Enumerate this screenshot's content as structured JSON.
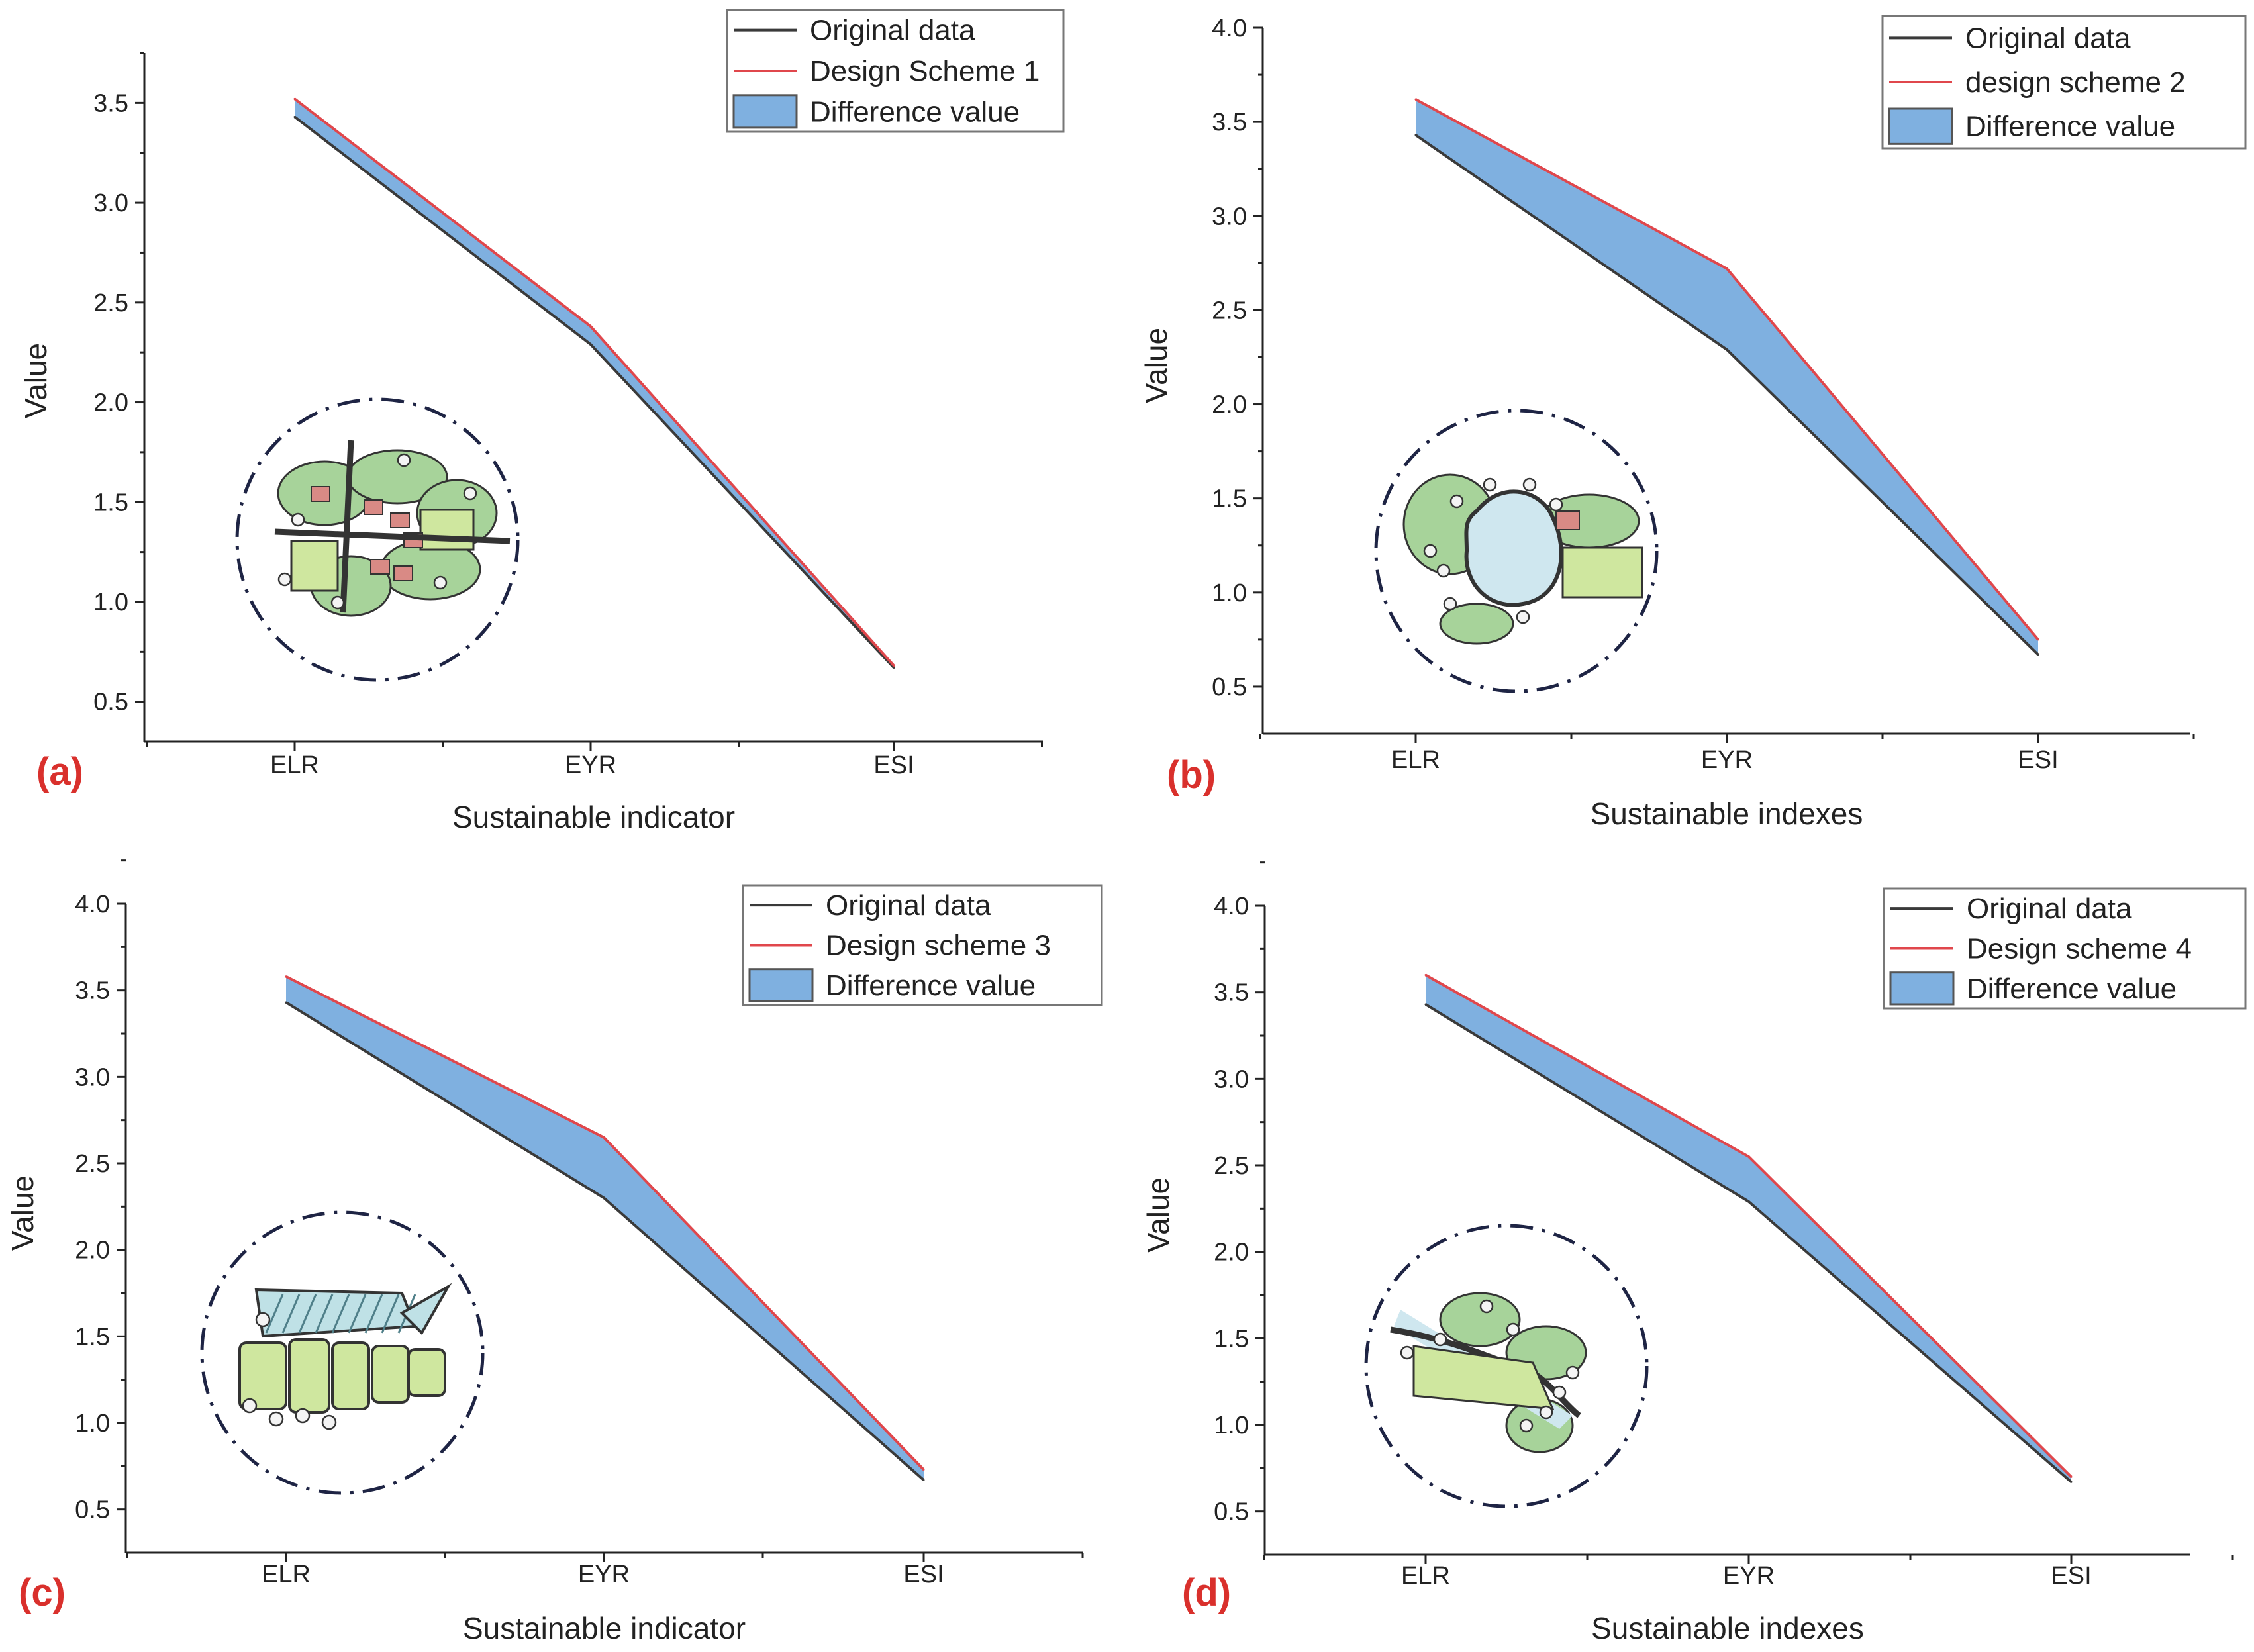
{
  "colors": {
    "original": "#3a3a3a",
    "scheme": "#e0474c",
    "fill": "#7fb0e0",
    "panel_label": "#d9302c",
    "emblem_ring": "#1e2444"
  },
  "chart_data": [
    {
      "type": "area",
      "panel_label": "(a)",
      "categories": [
        "ELR",
        "EYR",
        "ESI"
      ],
      "xlabel": "Sustainable indicator",
      "ylabel": "Value",
      "ylim": [
        0.3,
        3.75
      ],
      "yticks": [
        0.5,
        1.0,
        1.5,
        2.0,
        2.5,
        3.0,
        3.5
      ],
      "ytick_labels": [
        "0.5",
        "1.0",
        "1.5",
        "2.0",
        "2.5",
        "3.0",
        "3.5"
      ],
      "series": [
        {
          "name": "Original data",
          "values": [
            3.43,
            2.29,
            0.67
          ]
        },
        {
          "name": "Design Scheme 1",
          "values": [
            3.52,
            2.38,
            0.68
          ]
        }
      ],
      "fill_name": "Difference value",
      "emblem": "village-crossroads-plan"
    },
    {
      "type": "area",
      "panel_label": "(b)",
      "categories": [
        "ELR",
        "EYR",
        "ESI"
      ],
      "xlabel": "Sustainable indexes",
      "ylabel": "Value",
      "ylim": [
        0.25,
        4.0
      ],
      "yticks": [
        0.5,
        1.0,
        1.5,
        2.0,
        2.5,
        3.0,
        3.5,
        4.0
      ],
      "ytick_labels": [
        "0.5",
        "1.0",
        "1.5",
        "2.0",
        "2.5",
        "3.0",
        "3.5",
        "4.0"
      ],
      "series": [
        {
          "name": "Original data",
          "values": [
            3.43,
            2.29,
            0.67
          ]
        },
        {
          "name": "design scheme 2",
          "values": [
            3.62,
            2.72,
            0.75
          ]
        }
      ],
      "fill_name": "Difference value",
      "emblem": "pond-plan"
    },
    {
      "type": "area",
      "panel_label": "(c)",
      "categories": [
        "ELR",
        "EYR",
        "ESI"
      ],
      "xlabel": "Sustainable indicator",
      "ylabel": "Value",
      "ylim": [
        0.25,
        4.0
      ],
      "yticks": [
        0.5,
        1.0,
        1.5,
        2.0,
        2.5,
        3.0,
        3.5,
        4.0
      ],
      "ytick_labels": [
        "0.5",
        "1.0",
        "1.5",
        "2.0",
        "2.5",
        "3.0",
        "3.5",
        "4.0"
      ],
      "series": [
        {
          "name": "Original data",
          "values": [
            3.43,
            2.3,
            0.67
          ]
        },
        {
          "name": "Design scheme 3",
          "values": [
            3.58,
            2.65,
            0.73
          ]
        }
      ],
      "fill_name": "Difference value",
      "emblem": "fields-plan"
    },
    {
      "type": "area",
      "panel_label": "(d)",
      "categories": [
        "ELR",
        "EYR",
        "ESI"
      ],
      "xlabel": "Sustainable indexes",
      "ylabel": "Value",
      "ylim": [
        0.25,
        4.0
      ],
      "yticks": [
        0.5,
        1.0,
        1.5,
        2.0,
        2.5,
        3.0,
        3.5,
        4.0
      ],
      "ytick_labels": [
        "0.5",
        "1.0",
        "1.5",
        "2.0",
        "2.5",
        "3.0",
        "3.5",
        "4.0"
      ],
      "series": [
        {
          "name": "Original data",
          "values": [
            3.43,
            2.29,
            0.67
          ]
        },
        {
          "name": "Design scheme 4",
          "values": [
            3.6,
            2.55,
            0.7
          ]
        }
      ],
      "fill_name": "Difference value",
      "emblem": "river-plan"
    }
  ]
}
